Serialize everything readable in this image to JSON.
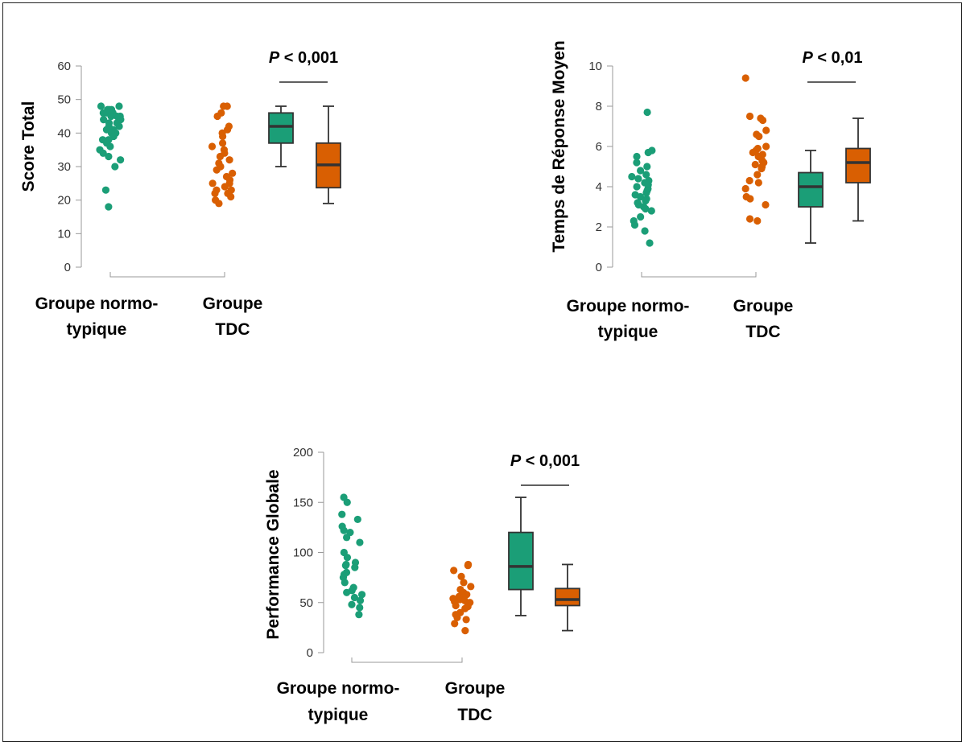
{
  "colors": {
    "normo": "#1b9e77",
    "tdc": "#d95f02",
    "axis": "#999999",
    "box_stroke": "#333333"
  },
  "chart_data": [
    {
      "type": "scatter",
      "ylabel": "Score Total",
      "ylim": [
        0,
        60
      ],
      "yticks": [
        0,
        10,
        20,
        30,
        40,
        50,
        60
      ],
      "categories": [
        [
          "Groupe normo-",
          "typique"
        ],
        [
          "Groupe",
          "TDC"
        ]
      ],
      "pvalue": {
        "p": "P",
        "rest": " < 0,001"
      },
      "series": [
        {
          "group": "normo",
          "values": [
            48,
            48,
            47,
            47,
            47,
            46,
            46,
            46,
            45,
            45,
            45,
            44,
            44,
            43,
            43,
            42,
            42,
            41,
            41,
            40,
            40,
            39,
            38,
            38,
            37,
            36,
            35,
            34,
            33,
            32,
            30,
            23,
            18
          ]
        },
        {
          "group": "tdc",
          "values": [
            48,
            48,
            46,
            45,
            42,
            41,
            40,
            39,
            37,
            36,
            35,
            34,
            33,
            32,
            31,
            30,
            29,
            28,
            27,
            26,
            25,
            25,
            24,
            23,
            23,
            22,
            22,
            21,
            20,
            19
          ]
        }
      ],
      "boxes": [
        {
          "group": "normo",
          "min": 30,
          "q1": 37,
          "median": 42,
          "q3": 46,
          "max": 48
        },
        {
          "group": "tdc",
          "min": 19,
          "q1": 23.7,
          "median": 30.5,
          "q3": 37,
          "max": 48
        }
      ]
    },
    {
      "type": "scatter",
      "ylabel": "Temps de Réponse Moyen",
      "ylim": [
        0,
        10
      ],
      "yticks": [
        0,
        2,
        4,
        6,
        8,
        10
      ],
      "categories": [
        [
          "Groupe normo-",
          "typique"
        ],
        [
          "Groupe",
          "TDC"
        ]
      ],
      "pvalue": {
        "p": "P",
        "rest": " < 0,01"
      },
      "series": [
        {
          "group": "normo",
          "values": [
            7.7,
            5.8,
            5.7,
            5.5,
            5.2,
            5.0,
            4.8,
            4.6,
            4.5,
            4.4,
            4.3,
            4.2,
            4.1,
            4.0,
            3.9,
            3.8,
            3.7,
            3.6,
            3.5,
            3.4,
            3.3,
            3.2,
            3.1,
            3.0,
            2.9,
            2.8,
            2.5,
            2.3,
            2.1,
            1.8,
            1.2
          ]
        },
        {
          "group": "tdc",
          "values": [
            9.4,
            7.5,
            7.4,
            7.3,
            6.8,
            6.6,
            6.5,
            6.0,
            5.9,
            5.8,
            5.7,
            5.6,
            5.5,
            5.3,
            5.2,
            5.1,
            5.0,
            4.9,
            4.6,
            4.3,
            4.2,
            3.9,
            3.5,
            3.4,
            3.1,
            2.4,
            2.3
          ]
        }
      ],
      "boxes": [
        {
          "group": "normo",
          "min": 1.2,
          "q1": 3.0,
          "median": 4.0,
          "q3": 4.7,
          "max": 5.8
        },
        {
          "group": "tdc",
          "min": 2.3,
          "q1": 4.2,
          "median": 5.2,
          "q3": 5.9,
          "max": 7.4
        }
      ]
    },
    {
      "type": "scatter",
      "ylabel": "Performance Globale",
      "ylim": [
        0,
        200
      ],
      "yticks": [
        0,
        50,
        100,
        150,
        200
      ],
      "categories": [
        [
          "Groupe normo-",
          "typique"
        ],
        [
          "Groupe",
          "TDC"
        ]
      ],
      "pvalue": {
        "p": "P",
        "rest": " < 0,001"
      },
      "series": [
        {
          "group": "normo",
          "values": [
            155,
            150,
            138,
            133,
            126,
            122,
            120,
            115,
            110,
            100,
            95,
            90,
            88,
            87,
            85,
            80,
            78,
            75,
            70,
            65,
            62,
            60,
            58,
            55,
            52,
            48,
            45,
            38
          ]
        },
        {
          "group": "tdc",
          "values": [
            88,
            87,
            82,
            76,
            70,
            66,
            63,
            60,
            58,
            56,
            55,
            54,
            53,
            52,
            51,
            50,
            48,
            47,
            46,
            44,
            40,
            38,
            35,
            33,
            29,
            22
          ]
        }
      ],
      "boxes": [
        {
          "group": "normo",
          "min": 37,
          "q1": 63,
          "median": 86,
          "q3": 120,
          "max": 155
        },
        {
          "group": "tdc",
          "min": 22,
          "q1": 47,
          "median": 53,
          "q3": 64,
          "max": 88
        }
      ]
    }
  ]
}
